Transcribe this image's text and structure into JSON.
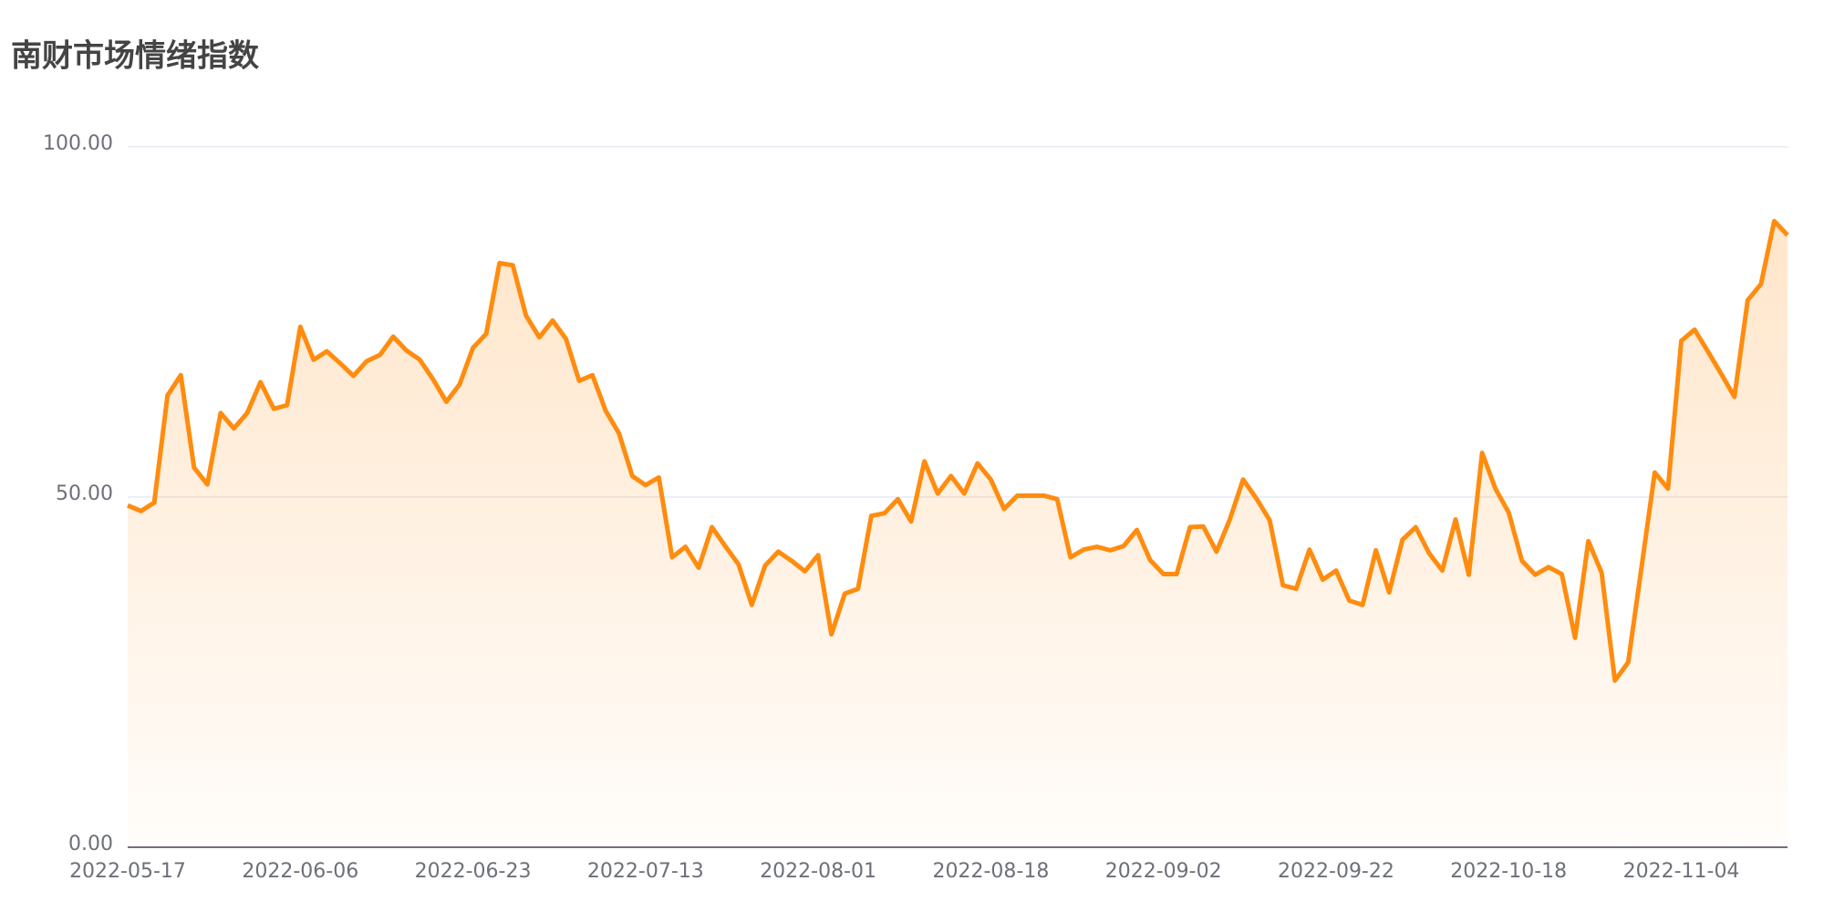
{
  "chart_data": {
    "type": "area",
    "title": "南财市场情绪指数",
    "color": "#ff8c0f",
    "grid": true,
    "ylim": [
      0,
      100
    ],
    "yticks": [
      {
        "value": 0,
        "label": "0.00"
      },
      {
        "value": 50,
        "label": "50.00"
      },
      {
        "value": 100,
        "label": "100.00"
      }
    ],
    "categories": [
      "2022-05-17",
      null,
      null,
      null,
      null,
      null,
      null,
      null,
      null,
      null,
      null,
      null,
      null,
      "2022-06-06",
      null,
      null,
      null,
      null,
      null,
      null,
      null,
      null,
      null,
      null,
      null,
      null,
      "2022-06-23",
      null,
      null,
      null,
      null,
      null,
      null,
      null,
      null,
      null,
      null,
      null,
      null,
      "2022-07-13",
      null,
      null,
      null,
      null,
      null,
      null,
      null,
      null,
      null,
      null,
      null,
      null,
      "2022-08-01",
      null,
      null,
      null,
      null,
      null,
      null,
      null,
      null,
      null,
      null,
      null,
      null,
      "2022-08-18",
      null,
      null,
      null,
      null,
      null,
      null,
      null,
      null,
      null,
      null,
      null,
      null,
      "2022-09-02",
      null,
      null,
      null,
      null,
      null,
      null,
      null,
      null,
      null,
      null,
      null,
      null,
      "2022-09-22",
      null,
      null,
      null,
      null,
      null,
      null,
      null,
      null,
      null,
      null,
      null,
      null,
      "2022-10-18",
      null,
      null,
      null,
      null,
      null,
      null,
      null,
      null,
      null,
      null,
      null,
      null,
      "2022-11-04",
      null,
      null,
      null,
      null,
      null,
      null,
      null,
      null
    ],
    "values": [
      48.8,
      48.0,
      49.2,
      64.5,
      67.4,
      54.2,
      51.8,
      62.0,
      59.8,
      62.0,
      66.4,
      62.6,
      63.1,
      74.3,
      69.6,
      70.8,
      69.1,
      67.3,
      69.4,
      70.3,
      72.9,
      70.9,
      69.6,
      66.8,
      63.6,
      66.1,
      71.3,
      73.3,
      83.4,
      83.1,
      75.9,
      72.8,
      75.2,
      72.6,
      66.6,
      67.4,
      62.3,
      59.1,
      53.0,
      51.7,
      52.8,
      41.4,
      42.9,
      39.9,
      45.7,
      43.0,
      40.4,
      34.6,
      40.2,
      42.2,
      40.9,
      39.4,
      41.7,
      30.4,
      36.2,
      36.9,
      47.3,
      47.7,
      49.7,
      46.5,
      55.1,
      50.5,
      53.0,
      50.5,
      54.8,
      52.5,
      48.3,
      50.2,
      50.2,
      50.2,
      49.7,
      41.4,
      42.5,
      42.9,
      42.4,
      43.0,
      45.3,
      41.0,
      39.0,
      39.0,
      45.7,
      45.8,
      42.2,
      46.8,
      52.5,
      49.8,
      46.7,
      37.4,
      36.9,
      42.5,
      38.2,
      39.5,
      35.2,
      34.6,
      42.4,
      36.4,
      43.9,
      45.7,
      42.0,
      39.5,
      46.8,
      38.9,
      56.3,
      51.2,
      47.8,
      40.9,
      38.9,
      40.0,
      39.0,
      29.9,
      43.7,
      39.2,
      23.8,
      26.4,
      39.9,
      53.5,
      51.2,
      72.3,
      73.9,
      70.8,
      67.6,
      64.3,
      78.1,
      80.4,
      89.4,
      87.4
    ]
  }
}
